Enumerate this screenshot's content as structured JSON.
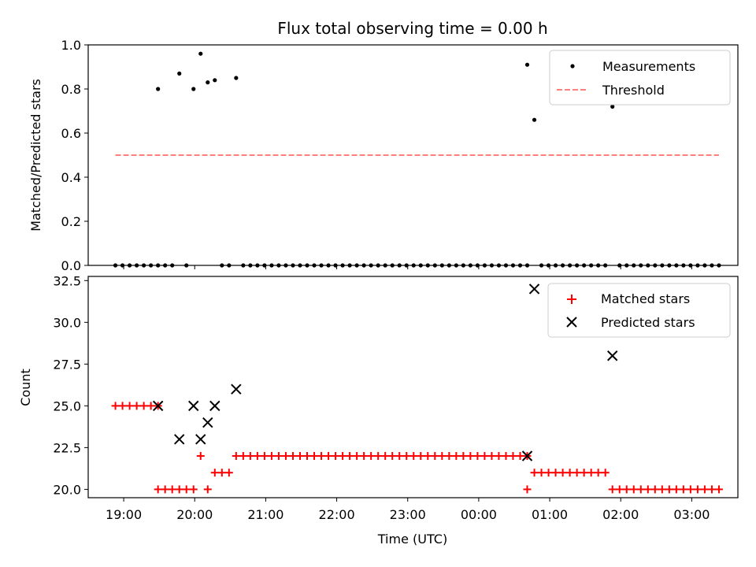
{
  "chart_data": [
    {
      "type": "scatter",
      "title": "Flux total observing time = 0.00 h",
      "ylabel": "Matched/Predicted stars",
      "xlabel": "",
      "x_unit": "time (UTC)",
      "xlim": [
        "18:30",
        "03:39"
      ],
      "ylim": [
        0.0,
        1.0
      ],
      "yticks": [
        0.0,
        0.2,
        0.4,
        0.6,
        0.8,
        1.0
      ],
      "ytick_labels": [
        "0.0",
        "0.2",
        "0.4",
        "0.6",
        "0.8",
        "1.0"
      ],
      "xticks": [
        "19:00",
        "20:00",
        "21:00",
        "22:00",
        "23:00",
        "00:00",
        "01:00",
        "02:00",
        "03:00"
      ],
      "legend_position": "top-right",
      "grid": false,
      "series": [
        {
          "name": "Measurements",
          "kind": "scatter",
          "color": "#000000",
          "marker": "dot",
          "points": [
            [
              "18:53",
              0
            ],
            [
              "18:59",
              0
            ],
            [
              "19:05",
              0
            ],
            [
              "19:11",
              0
            ],
            [
              "19:17",
              0
            ],
            [
              "19:23",
              0
            ],
            [
              "19:29",
              0
            ],
            [
              "19:29",
              0.8
            ],
            [
              "19:35",
              0
            ],
            [
              "19:41",
              0
            ],
            [
              "19:47",
              0.87
            ],
            [
              "19:53",
              0
            ],
            [
              "19:59",
              0.8
            ],
            [
              "20:05",
              0.96
            ],
            [
              "20:11",
              0.83
            ],
            [
              "20:17",
              0.84
            ],
            [
              "20:23",
              0
            ],
            [
              "20:29",
              0
            ],
            [
              "20:35",
              0.85
            ],
            [
              "20:41",
              0
            ],
            [
              "20:47",
              0
            ],
            [
              "20:53",
              0
            ],
            [
              "20:59",
              0
            ],
            [
              "21:05",
              0
            ],
            [
              "21:11",
              0
            ],
            [
              "21:17",
              0
            ],
            [
              "21:23",
              0
            ],
            [
              "21:29",
              0
            ],
            [
              "21:35",
              0
            ],
            [
              "21:41",
              0
            ],
            [
              "21:47",
              0
            ],
            [
              "21:53",
              0
            ],
            [
              "21:59",
              0
            ],
            [
              "22:05",
              0
            ],
            [
              "22:11",
              0
            ],
            [
              "22:17",
              0
            ],
            [
              "22:23",
              0
            ],
            [
              "22:29",
              0
            ],
            [
              "22:35",
              0
            ],
            [
              "22:41",
              0
            ],
            [
              "22:47",
              0
            ],
            [
              "22:53",
              0
            ],
            [
              "22:59",
              0
            ],
            [
              "23:05",
              0
            ],
            [
              "23:11",
              0
            ],
            [
              "23:17",
              0
            ],
            [
              "23:23",
              0
            ],
            [
              "23:29",
              0
            ],
            [
              "23:35",
              0
            ],
            [
              "23:41",
              0
            ],
            [
              "23:47",
              0
            ],
            [
              "23:53",
              0
            ],
            [
              "23:59",
              0
            ],
            [
              "00:05",
              0
            ],
            [
              "00:11",
              0
            ],
            [
              "00:17",
              0
            ],
            [
              "00:23",
              0
            ],
            [
              "00:29",
              0
            ],
            [
              "00:35",
              0
            ],
            [
              "00:41",
              0
            ],
            [
              "00:41",
              0.91
            ],
            [
              "00:47",
              0.66
            ],
            [
              "00:53",
              0
            ],
            [
              "00:59",
              0
            ],
            [
              "01:05",
              0
            ],
            [
              "01:11",
              0
            ],
            [
              "01:17",
              0
            ],
            [
              "01:23",
              0
            ],
            [
              "01:29",
              0
            ],
            [
              "01:35",
              0
            ],
            [
              "01:41",
              0
            ],
            [
              "01:47",
              0
            ],
            [
              "01:53",
              0.72
            ],
            [
              "01:59",
              0
            ],
            [
              "02:05",
              0
            ],
            [
              "02:11",
              0
            ],
            [
              "02:17",
              0
            ],
            [
              "02:23",
              0
            ],
            [
              "02:29",
              0
            ],
            [
              "02:35",
              0
            ],
            [
              "02:41",
              0
            ],
            [
              "02:47",
              0
            ],
            [
              "02:53",
              0
            ],
            [
              "02:59",
              0
            ],
            [
              "03:05",
              0
            ],
            [
              "03:11",
              0
            ],
            [
              "03:17",
              0
            ],
            [
              "03:23",
              0
            ]
          ]
        },
        {
          "name": "Threshold",
          "kind": "line",
          "style": "dashed",
          "color": "#ff7f7f",
          "x": [
            "18:53",
            "03:23"
          ],
          "y": [
            0.5,
            0.5
          ]
        }
      ]
    },
    {
      "type": "scatter",
      "title": "",
      "ylabel": "Count",
      "xlabel": "Time (UTC)",
      "x_unit": "time (UTC)",
      "xlim": [
        "18:30",
        "03:39"
      ],
      "ylim": [
        19.5,
        32.75
      ],
      "yticks": [
        20.0,
        22.5,
        25.0,
        27.5,
        30.0,
        32.5
      ],
      "ytick_labels": [
        "20.0",
        "22.5",
        "25.0",
        "27.5",
        "30.0",
        "32.5"
      ],
      "xticks": [
        "19:00",
        "20:00",
        "21:00",
        "22:00",
        "23:00",
        "00:00",
        "01:00",
        "02:00",
        "03:00"
      ],
      "xtick_labels": [
        "19:00",
        "20:00",
        "21:00",
        "22:00",
        "23:00",
        "00:00",
        "01:00",
        "02:00",
        "03:00"
      ],
      "legend_position": "top-right",
      "grid": false,
      "series": [
        {
          "name": "Matched stars",
          "kind": "scatter",
          "color": "#ff0000",
          "marker": "plus",
          "points": [
            [
              "18:53",
              25
            ],
            [
              "18:59",
              25
            ],
            [
              "19:05",
              25
            ],
            [
              "19:11",
              25
            ],
            [
              "19:17",
              25
            ],
            [
              "19:23",
              25
            ],
            [
              "19:29",
              25
            ],
            [
              "19:29",
              20
            ],
            [
              "19:35",
              20
            ],
            [
              "19:41",
              20
            ],
            [
              "19:47",
              20
            ],
            [
              "19:53",
              20
            ],
            [
              "19:59",
              20
            ],
            [
              "20:05",
              22
            ],
            [
              "20:11",
              20
            ],
            [
              "20:17",
              21
            ],
            [
              "20:23",
              21
            ],
            [
              "20:29",
              21
            ],
            [
              "20:35",
              22
            ],
            [
              "20:41",
              22
            ],
            [
              "20:47",
              22
            ],
            [
              "20:53",
              22
            ],
            [
              "20:59",
              22
            ],
            [
              "21:05",
              22
            ],
            [
              "21:11",
              22
            ],
            [
              "21:17",
              22
            ],
            [
              "21:23",
              22
            ],
            [
              "21:29",
              22
            ],
            [
              "21:35",
              22
            ],
            [
              "21:41",
              22
            ],
            [
              "21:47",
              22
            ],
            [
              "21:53",
              22
            ],
            [
              "21:59",
              22
            ],
            [
              "22:05",
              22
            ],
            [
              "22:11",
              22
            ],
            [
              "22:17",
              22
            ],
            [
              "22:23",
              22
            ],
            [
              "22:29",
              22
            ],
            [
              "22:35",
              22
            ],
            [
              "22:41",
              22
            ],
            [
              "22:47",
              22
            ],
            [
              "22:53",
              22
            ],
            [
              "22:59",
              22
            ],
            [
              "23:05",
              22
            ],
            [
              "23:11",
              22
            ],
            [
              "23:17",
              22
            ],
            [
              "23:23",
              22
            ],
            [
              "23:29",
              22
            ],
            [
              "23:35",
              22
            ],
            [
              "23:41",
              22
            ],
            [
              "23:47",
              22
            ],
            [
              "23:53",
              22
            ],
            [
              "23:59",
              22
            ],
            [
              "00:05",
              22
            ],
            [
              "00:11",
              22
            ],
            [
              "00:17",
              22
            ],
            [
              "00:23",
              22
            ],
            [
              "00:29",
              22
            ],
            [
              "00:35",
              22
            ],
            [
              "00:41",
              22
            ],
            [
              "00:41",
              20
            ],
            [
              "00:47",
              21
            ],
            [
              "00:53",
              21
            ],
            [
              "00:59",
              21
            ],
            [
              "01:05",
              21
            ],
            [
              "01:11",
              21
            ],
            [
              "01:17",
              21
            ],
            [
              "01:23",
              21
            ],
            [
              "01:29",
              21
            ],
            [
              "01:35",
              21
            ],
            [
              "01:41",
              21
            ],
            [
              "01:47",
              21
            ],
            [
              "01:53",
              20
            ],
            [
              "01:59",
              20
            ],
            [
              "02:05",
              20
            ],
            [
              "02:11",
              20
            ],
            [
              "02:17",
              20
            ],
            [
              "02:23",
              20
            ],
            [
              "02:29",
              20
            ],
            [
              "02:35",
              20
            ],
            [
              "02:41",
              20
            ],
            [
              "02:47",
              20
            ],
            [
              "02:53",
              20
            ],
            [
              "02:59",
              20
            ],
            [
              "03:05",
              20
            ],
            [
              "03:11",
              20
            ],
            [
              "03:17",
              20
            ],
            [
              "03:23",
              20
            ]
          ]
        },
        {
          "name": "Predicted stars",
          "kind": "scatter",
          "color": "#000000",
          "marker": "x",
          "points": [
            [
              "19:29",
              25
            ],
            [
              "19:47",
              23
            ],
            [
              "19:59",
              25
            ],
            [
              "20:05",
              23
            ],
            [
              "20:11",
              24
            ],
            [
              "20:17",
              25
            ],
            [
              "20:35",
              26
            ],
            [
              "00:41",
              22
            ],
            [
              "00:47",
              32
            ],
            [
              "01:53",
              28
            ]
          ]
        }
      ]
    }
  ]
}
